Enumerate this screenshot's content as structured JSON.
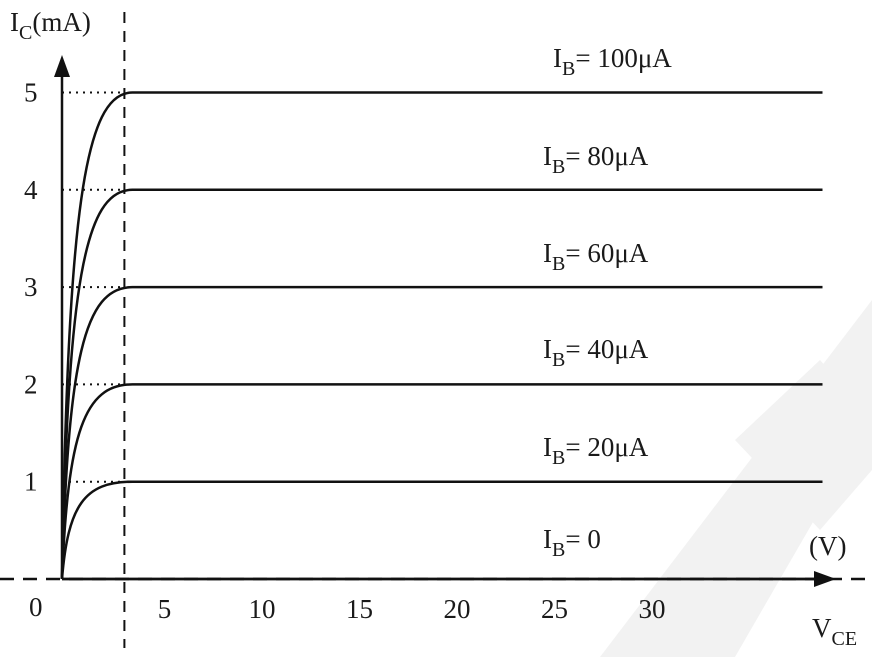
{
  "chart_data": {
    "type": "line",
    "title": "",
    "xlabel": "V",
    "xlabel_sub": "CE",
    "x_unit": "(V)",
    "ylabel": "I",
    "ylabel_sub": "C",
    "y_unit": "(mA)",
    "origin_label": "0",
    "xlim": [
      0,
      40
    ],
    "ylim": [
      0,
      5.8
    ],
    "x_ticks": [
      5,
      10,
      15,
      20,
      25,
      30
    ],
    "y_ticks": [
      1,
      2,
      3,
      4,
      5
    ],
    "knee_voltage": 3.2,
    "x_end": 39,
    "series": [
      {
        "name_prefix": "I",
        "name_sub": "B",
        "name_value": "= 0",
        "ic_ma": 0
      },
      {
        "name_prefix": "I",
        "name_sub": "B",
        "name_value": "= 20μA",
        "ic_ma": 1
      },
      {
        "name_prefix": "I",
        "name_sub": "B",
        "name_value": "= 40μA",
        "ic_ma": 2
      },
      {
        "name_prefix": "I",
        "name_sub": "B",
        "name_value": "= 60μA",
        "ic_ma": 3
      },
      {
        "name_prefix": "I",
        "name_sub": "B",
        "name_value": "= 80μA",
        "ic_ma": 4
      },
      {
        "name_prefix": "I",
        "name_sub": "B",
        "name_value": "= 100μA",
        "ic_ma": 5
      }
    ],
    "grid": false,
    "legend": "none",
    "line_color": "#111111"
  }
}
